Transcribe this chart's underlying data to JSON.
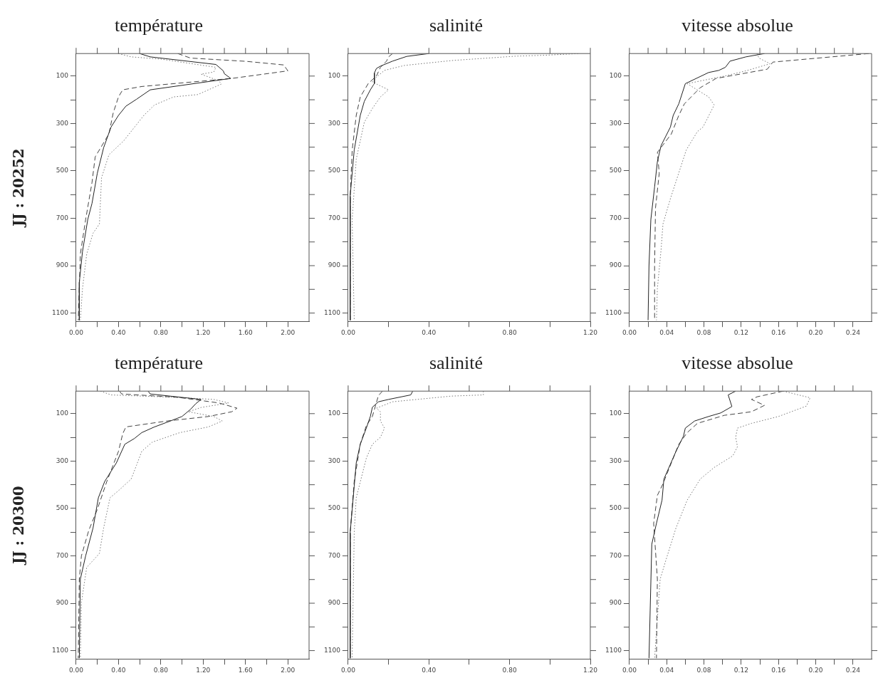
{
  "chart_data": [
    {
      "type": "line",
      "title": "température",
      "ylabel": "JJ : 20252",
      "marker": "none",
      "xlim": [
        0,
        2.2
      ],
      "xticks": [
        {
          "value": 0,
          "label": "0.00"
        },
        {
          "value": 0.2,
          "label": null
        },
        {
          "value": 0.4,
          "label": "0.40"
        },
        {
          "value": 0.6,
          "label": null
        },
        {
          "value": 0.8,
          "label": "0.80"
        },
        {
          "value": 1.0,
          "label": null
        },
        {
          "value": 1.2,
          "label": "1.20"
        },
        {
          "value": 1.4,
          "label": null
        },
        {
          "value": 1.6,
          "label": "1.60"
        },
        {
          "value": 1.8,
          "label": null
        },
        {
          "value": 2.0,
          "label": "2.00"
        }
      ],
      "ylim": [
        1135,
        5
      ],
      "yticks": [
        100,
        {
          "value": 200,
          "label": null
        },
        300,
        {
          "value": 400,
          "label": null
        },
        500,
        {
          "value": 600,
          "label": null
        },
        700,
        {
          "value": 800,
          "label": null
        },
        900,
        {
          "value": 1000,
          "label": null
        },
        1100
      ],
      "series": [
        {
          "color": "#222222",
          "line_style": "solid",
          "x": [
            0.6,
            0.7,
            1.32,
            1.39,
            1.4,
            1.46,
            0.7,
            0.57,
            0.47,
            0.4,
            0.33,
            0.26,
            0.2,
            0.15,
            0.11,
            0.06,
            0.03,
            0.03
          ],
          "values": [
            5,
            19,
            51,
            78,
            90,
            110,
            158,
            198,
            227,
            266,
            315,
            402,
            510,
            637,
            705,
            841,
            970,
            1130
          ]
        },
        {
          "color": "#444444",
          "line_style": "dashed",
          "x": [
            0.96,
            1.08,
            1.61,
            1.96,
            2.0,
            1.47,
            0.62,
            0.44,
            0.4,
            0.35,
            0.31,
            0.18,
            0.15,
            0.09,
            0.04,
            0.02
          ],
          "values": [
            5,
            24,
            38,
            53,
            78,
            110,
            144,
            158,
            188,
            256,
            344,
            441,
            549,
            705,
            851,
            1130
          ]
        },
        {
          "color": "#777777",
          "line_style": "dotted",
          "x": [
            0.4,
            0.52,
            0.81,
            1.32,
            1.3,
            1.18,
            1.35,
            1.37,
            1.25,
            1.15,
            0.92,
            0.74,
            0.64,
            0.57,
            0.45,
            0.31,
            0.24,
            0.22,
            0.16,
            0.1,
            0.06,
            0.04
          ],
          "values": [
            5,
            19,
            29,
            63,
            83,
            92,
            120,
            134,
            158,
            178,
            188,
            222,
            266,
            305,
            373,
            432,
            529,
            724,
            763,
            851,
            997,
            1130
          ]
        }
      ]
    },
    {
      "type": "line",
      "title": "salinité",
      "marker": "none",
      "xlim": [
        0,
        1.2
      ],
      "xticks": [
        {
          "value": 0,
          "label": "0.00"
        },
        {
          "value": 0.2,
          "label": null
        },
        {
          "value": 0.4,
          "label": "0.40"
        },
        {
          "value": 0.6,
          "label": null
        },
        {
          "value": 0.8,
          "label": "0.80"
        },
        {
          "value": 1.0,
          "label": null
        },
        {
          "value": 1.2,
          "label": "1.20"
        }
      ],
      "ylim": [
        1135,
        5
      ],
      "yticks": [
        100,
        {
          "value": 200,
          "label": null
        },
        300,
        {
          "value": 400,
          "label": null
        },
        500,
        {
          "value": 600,
          "label": null
        },
        700,
        {
          "value": 800,
          "label": null
        },
        900,
        {
          "value": 1000,
          "label": null
        },
        1100
      ],
      "series": [
        {
          "color": "#222222",
          "line_style": "solid",
          "x": [
            0.4,
            0.29,
            0.22,
            0.16,
            0.14,
            0.13,
            0.13,
            0.11,
            0.08,
            0.06,
            0.03,
            0.01,
            0.01
          ],
          "values": [
            5,
            17,
            37,
            58,
            68,
            87,
            131,
            158,
            207,
            266,
            412,
            607,
            1130
          ]
        },
        {
          "color": "#444444",
          "line_style": "dashed",
          "x": [
            0.22,
            0.2,
            0.19,
            0.16,
            0.14,
            0.1,
            0.06,
            0.04,
            0.02,
            0.01,
            0.01
          ],
          "values": [
            5,
            19,
            37,
            63,
            100,
            131,
            188,
            266,
            412,
            607,
            1130
          ]
        },
        {
          "color": "#777777",
          "line_style": "dotted",
          "x": [
            1.14,
            0.98,
            0.83,
            0.52,
            0.28,
            0.18,
            0.14,
            0.12,
            0.2,
            0.16,
            0.12,
            0.08,
            0.04,
            0.02,
            0.03
          ],
          "values": [
            5,
            12,
            16,
            34,
            55,
            76,
            105,
            125,
            158,
            188,
            237,
            295,
            451,
            705,
            1130
          ]
        }
      ]
    },
    {
      "type": "line",
      "title": "vitesse absolue",
      "marker": "none",
      "xlim": [
        0,
        0.26
      ],
      "xticks": [
        {
          "value": 0,
          "label": "0.00"
        },
        {
          "value": 0.02,
          "label": null
        },
        {
          "value": 0.04,
          "label": "0.04"
        },
        {
          "value": 0.06,
          "label": null
        },
        {
          "value": 0.08,
          "label": "0.08"
        },
        {
          "value": 0.1,
          "label": null
        },
        {
          "value": 0.12,
          "label": "0.12"
        },
        {
          "value": 0.14,
          "label": null
        },
        {
          "value": 0.16,
          "label": "0.16"
        },
        {
          "value": 0.18,
          "label": null
        },
        {
          "value": 0.2,
          "label": "0.20"
        },
        {
          "value": 0.22,
          "label": null
        },
        {
          "value": 0.24,
          "label": "0.24"
        }
      ],
      "ylim": [
        1135,
        5
      ],
      "yticks": [
        100,
        {
          "value": 200,
          "label": null
        },
        300,
        {
          "value": 400,
          "label": null
        },
        500,
        {
          "value": 600,
          "label": null
        },
        700,
        {
          "value": 800,
          "label": null
        },
        900,
        {
          "value": 1000,
          "label": null
        },
        1100
      ],
      "series": [
        {
          "color": "#222222",
          "line_style": "solid",
          "x": [
            0.145,
            0.125,
            0.108,
            0.103,
            0.096,
            0.085,
            0.06,
            0.053,
            0.047,
            0.044,
            0.034,
            0.03,
            0.027,
            0.023,
            0.021,
            0.02
          ],
          "values": [
            5,
            19,
            37,
            63,
            76,
            85,
            132,
            217,
            266,
            315,
            393,
            461,
            568,
            705,
            900,
            1130
          ]
        },
        {
          "color": "#444444",
          "line_style": "dashed",
          "x": [
            0.257,
            0.154,
            0.148,
            0.093,
            0.076,
            0.059,
            0.053,
            0.045,
            0.03,
            0.032,
            0.028,
            0.027,
            0.027
          ],
          "values": [
            5,
            41,
            71,
            110,
            149,
            217,
            266,
            344,
            422,
            510,
            656,
            900,
            1130
          ]
        },
        {
          "color": "#777777",
          "line_style": "dotted",
          "x": [
            0.137,
            0.139,
            0.151,
            0.125,
            0.102,
            0.062,
            0.085,
            0.091,
            0.079,
            0.073,
            0.061,
            0.044,
            0.036,
            0.034,
            0.03,
            0.029
          ],
          "values": [
            5,
            24,
            48,
            78,
            100,
            132,
            188,
            222,
            315,
            334,
            412,
            617,
            724,
            831,
            997,
            1130
          ]
        }
      ]
    },
    {
      "type": "line",
      "title": "température",
      "ylabel": "JJ : 20300",
      "marker": "none",
      "xlim": [
        0,
        2.2
      ],
      "xticks": [
        {
          "value": 0,
          "label": "0.00"
        },
        {
          "value": 0.2,
          "label": null
        },
        {
          "value": 0.4,
          "label": "0.40"
        },
        {
          "value": 0.6,
          "label": null
        },
        {
          "value": 0.8,
          "label": "0.80"
        },
        {
          "value": 1.0,
          "label": null
        },
        {
          "value": 1.2,
          "label": "1.20"
        },
        {
          "value": 1.4,
          "label": null
        },
        {
          "value": 1.6,
          "label": "1.60"
        },
        {
          "value": 1.8,
          "label": null
        },
        {
          "value": 2.0,
          "label": "2.00"
        }
      ],
      "ylim": [
        1135,
        5
      ],
      "yticks": [
        100,
        {
          "value": 200,
          "label": null
        },
        300,
        {
          "value": 400,
          "label": null
        },
        500,
        {
          "value": 600,
          "label": null
        },
        700,
        {
          "value": 800,
          "label": null
        },
        900,
        {
          "value": 1000,
          "label": null
        },
        1100
      ],
      "series": [
        {
          "color": "#222222",
          "line_style": "solid",
          "x": [
            0.68,
            0.7,
            1.18,
            1.13,
            1.08,
            1.0,
            0.89,
            0.74,
            0.62,
            0.55,
            0.46,
            0.38,
            0.27,
            0.21,
            0.16,
            0.09,
            0.04,
            0.03
          ],
          "values": [
            5,
            17,
            40,
            58,
            82,
            112,
            131,
            156,
            180,
            205,
            229,
            308,
            386,
            455,
            582,
            700,
            798,
            1132
          ]
        },
        {
          "color": "#444444",
          "line_style": "dashed",
          "x": [
            0.41,
            0.43,
            0.96,
            1.35,
            1.52,
            1.47,
            1.25,
            0.86,
            0.47,
            0.44,
            0.4,
            0.29,
            0.2,
            0.12,
            0.05,
            0.03,
            0.02
          ],
          "values": [
            5,
            17,
            31,
            55,
            77,
            92,
            112,
            131,
            156,
            185,
            259,
            386,
            504,
            592,
            700,
            798,
            1132
          ]
        },
        {
          "color": "#777777",
          "line_style": "dotted",
          "x": [
            0.23,
            0.33,
            0.93,
            1.3,
            1.44,
            1.18,
            1.06,
            1.3,
            1.38,
            1.25,
            0.98,
            0.72,
            0.62,
            0.57,
            0.52,
            0.4,
            0.32,
            0.26,
            0.22,
            0.1,
            0.05,
            0.04
          ],
          "values": [
            5,
            21,
            31,
            40,
            55,
            74,
            92,
            112,
            131,
            156,
            180,
            220,
            259,
            318,
            376,
            425,
            455,
            582,
            690,
            749,
            896,
            1132
          ]
        }
      ]
    },
    {
      "type": "line",
      "title": "salinité",
      "marker": "none",
      "xlim": [
        0,
        1.2
      ],
      "xticks": [
        {
          "value": 0,
          "label": "0.00"
        },
        {
          "value": 0.2,
          "label": null
        },
        {
          "value": 0.4,
          "label": "0.40"
        },
        {
          "value": 0.6,
          "label": null
        },
        {
          "value": 0.8,
          "label": "0.80"
        },
        {
          "value": 1.0,
          "label": null
        },
        {
          "value": 1.2,
          "label": "1.20"
        }
      ],
      "ylim": [
        1135,
        5
      ],
      "yticks": [
        100,
        {
          "value": 200,
          "label": null
        },
        300,
        {
          "value": 400,
          "label": null
        },
        500,
        {
          "value": 600,
          "label": null
        },
        700,
        {
          "value": 800,
          "label": null
        },
        900,
        {
          "value": 1000,
          "label": null
        },
        1100
      ],
      "series": [
        {
          "color": "#222222",
          "line_style": "solid",
          "x": [
            0.32,
            0.31,
            0.2,
            0.15,
            0.12,
            0.11,
            0.09,
            0.06,
            0.04,
            0.03,
            0.01,
            0.01
          ],
          "values": [
            5,
            21,
            40,
            50,
            73,
            112,
            161,
            229,
            308,
            406,
            602,
            1132
          ]
        },
        {
          "color": "#444444",
          "line_style": "dashed",
          "x": [
            0.17,
            0.15,
            0.14,
            0.12,
            0.09,
            0.06,
            0.03,
            0.01,
            0.01
          ],
          "values": [
            5,
            24,
            53,
            112,
            151,
            229,
            386,
            602,
            1132
          ]
        },
        {
          "color": "#777777",
          "line_style": "dotted",
          "x": [
            0.67,
            0.67,
            0.51,
            0.22,
            0.14,
            0.16,
            0.16,
            0.18,
            0.16,
            0.12,
            0.09,
            0.04,
            0.03,
            0.02
          ],
          "values": [
            5,
            21,
            26,
            50,
            77,
            92,
            131,
            161,
            200,
            229,
            288,
            455,
            602,
            1132
          ]
        }
      ]
    },
    {
      "type": "line",
      "title": "vitesse absolue",
      "marker": "none",
      "xlim": [
        0,
        0.26
      ],
      "xticks": [
        {
          "value": 0,
          "label": "0.00"
        },
        {
          "value": 0.02,
          "label": null
        },
        {
          "value": 0.04,
          "label": "0.04"
        },
        {
          "value": 0.06,
          "label": null
        },
        {
          "value": 0.08,
          "label": "0.08"
        },
        {
          "value": 0.1,
          "label": null
        },
        {
          "value": 0.12,
          "label": "0.12"
        },
        {
          "value": 0.14,
          "label": null
        },
        {
          "value": 0.16,
          "label": "0.16"
        },
        {
          "value": 0.18,
          "label": null
        },
        {
          "value": 0.2,
          "label": "0.20"
        },
        {
          "value": 0.22,
          "label": null
        },
        {
          "value": 0.24,
          "label": "0.24"
        }
      ],
      "ylim": [
        1135,
        5
      ],
      "yticks": [
        100,
        {
          "value": 200,
          "label": null
        },
        300,
        {
          "value": 400,
          "label": null
        },
        500,
        {
          "value": 600,
          "label": null
        },
        700,
        {
          "value": 800,
          "label": null
        },
        900,
        {
          "value": 1000,
          "label": null
        },
        1100
      ],
      "series": [
        {
          "color": "#222222",
          "line_style": "solid",
          "x": [
            0.114,
            0.106,
            0.11,
            0.098,
            0.085,
            0.07,
            0.06,
            0.058,
            0.05,
            0.037,
            0.035,
            0.029,
            0.024,
            0.021
          ],
          "values": [
            5,
            21,
            70,
            97,
            112,
            131,
            161,
            195,
            259,
            376,
            465,
            563,
            651,
            1132
          ]
        },
        {
          "color": "#444444",
          "line_style": "dashed",
          "x": [
            0.165,
            0.137,
            0.131,
            0.145,
            0.131,
            0.102,
            0.073,
            0.062,
            0.053,
            0.047,
            0.036,
            0.03,
            0.026,
            0.03,
            0.029
          ],
          "values": [
            5,
            29,
            40,
            65,
            92,
            107,
            141,
            180,
            229,
            288,
            396,
            445,
            563,
            798,
            1132
          ]
        },
        {
          "color": "#777777",
          "line_style": "dotted",
          "x": [
            0.165,
            0.194,
            0.19,
            0.16,
            0.131,
            0.116,
            0.114,
            0.116,
            0.111,
            0.091,
            0.076,
            0.062,
            0.05,
            0.039,
            0.033,
            0.027
          ],
          "values": [
            5,
            33,
            68,
            112,
            141,
            161,
            200,
            239,
            278,
            327,
            376,
            465,
            582,
            720,
            798,
            1132
          ]
        }
      ]
    }
  ]
}
